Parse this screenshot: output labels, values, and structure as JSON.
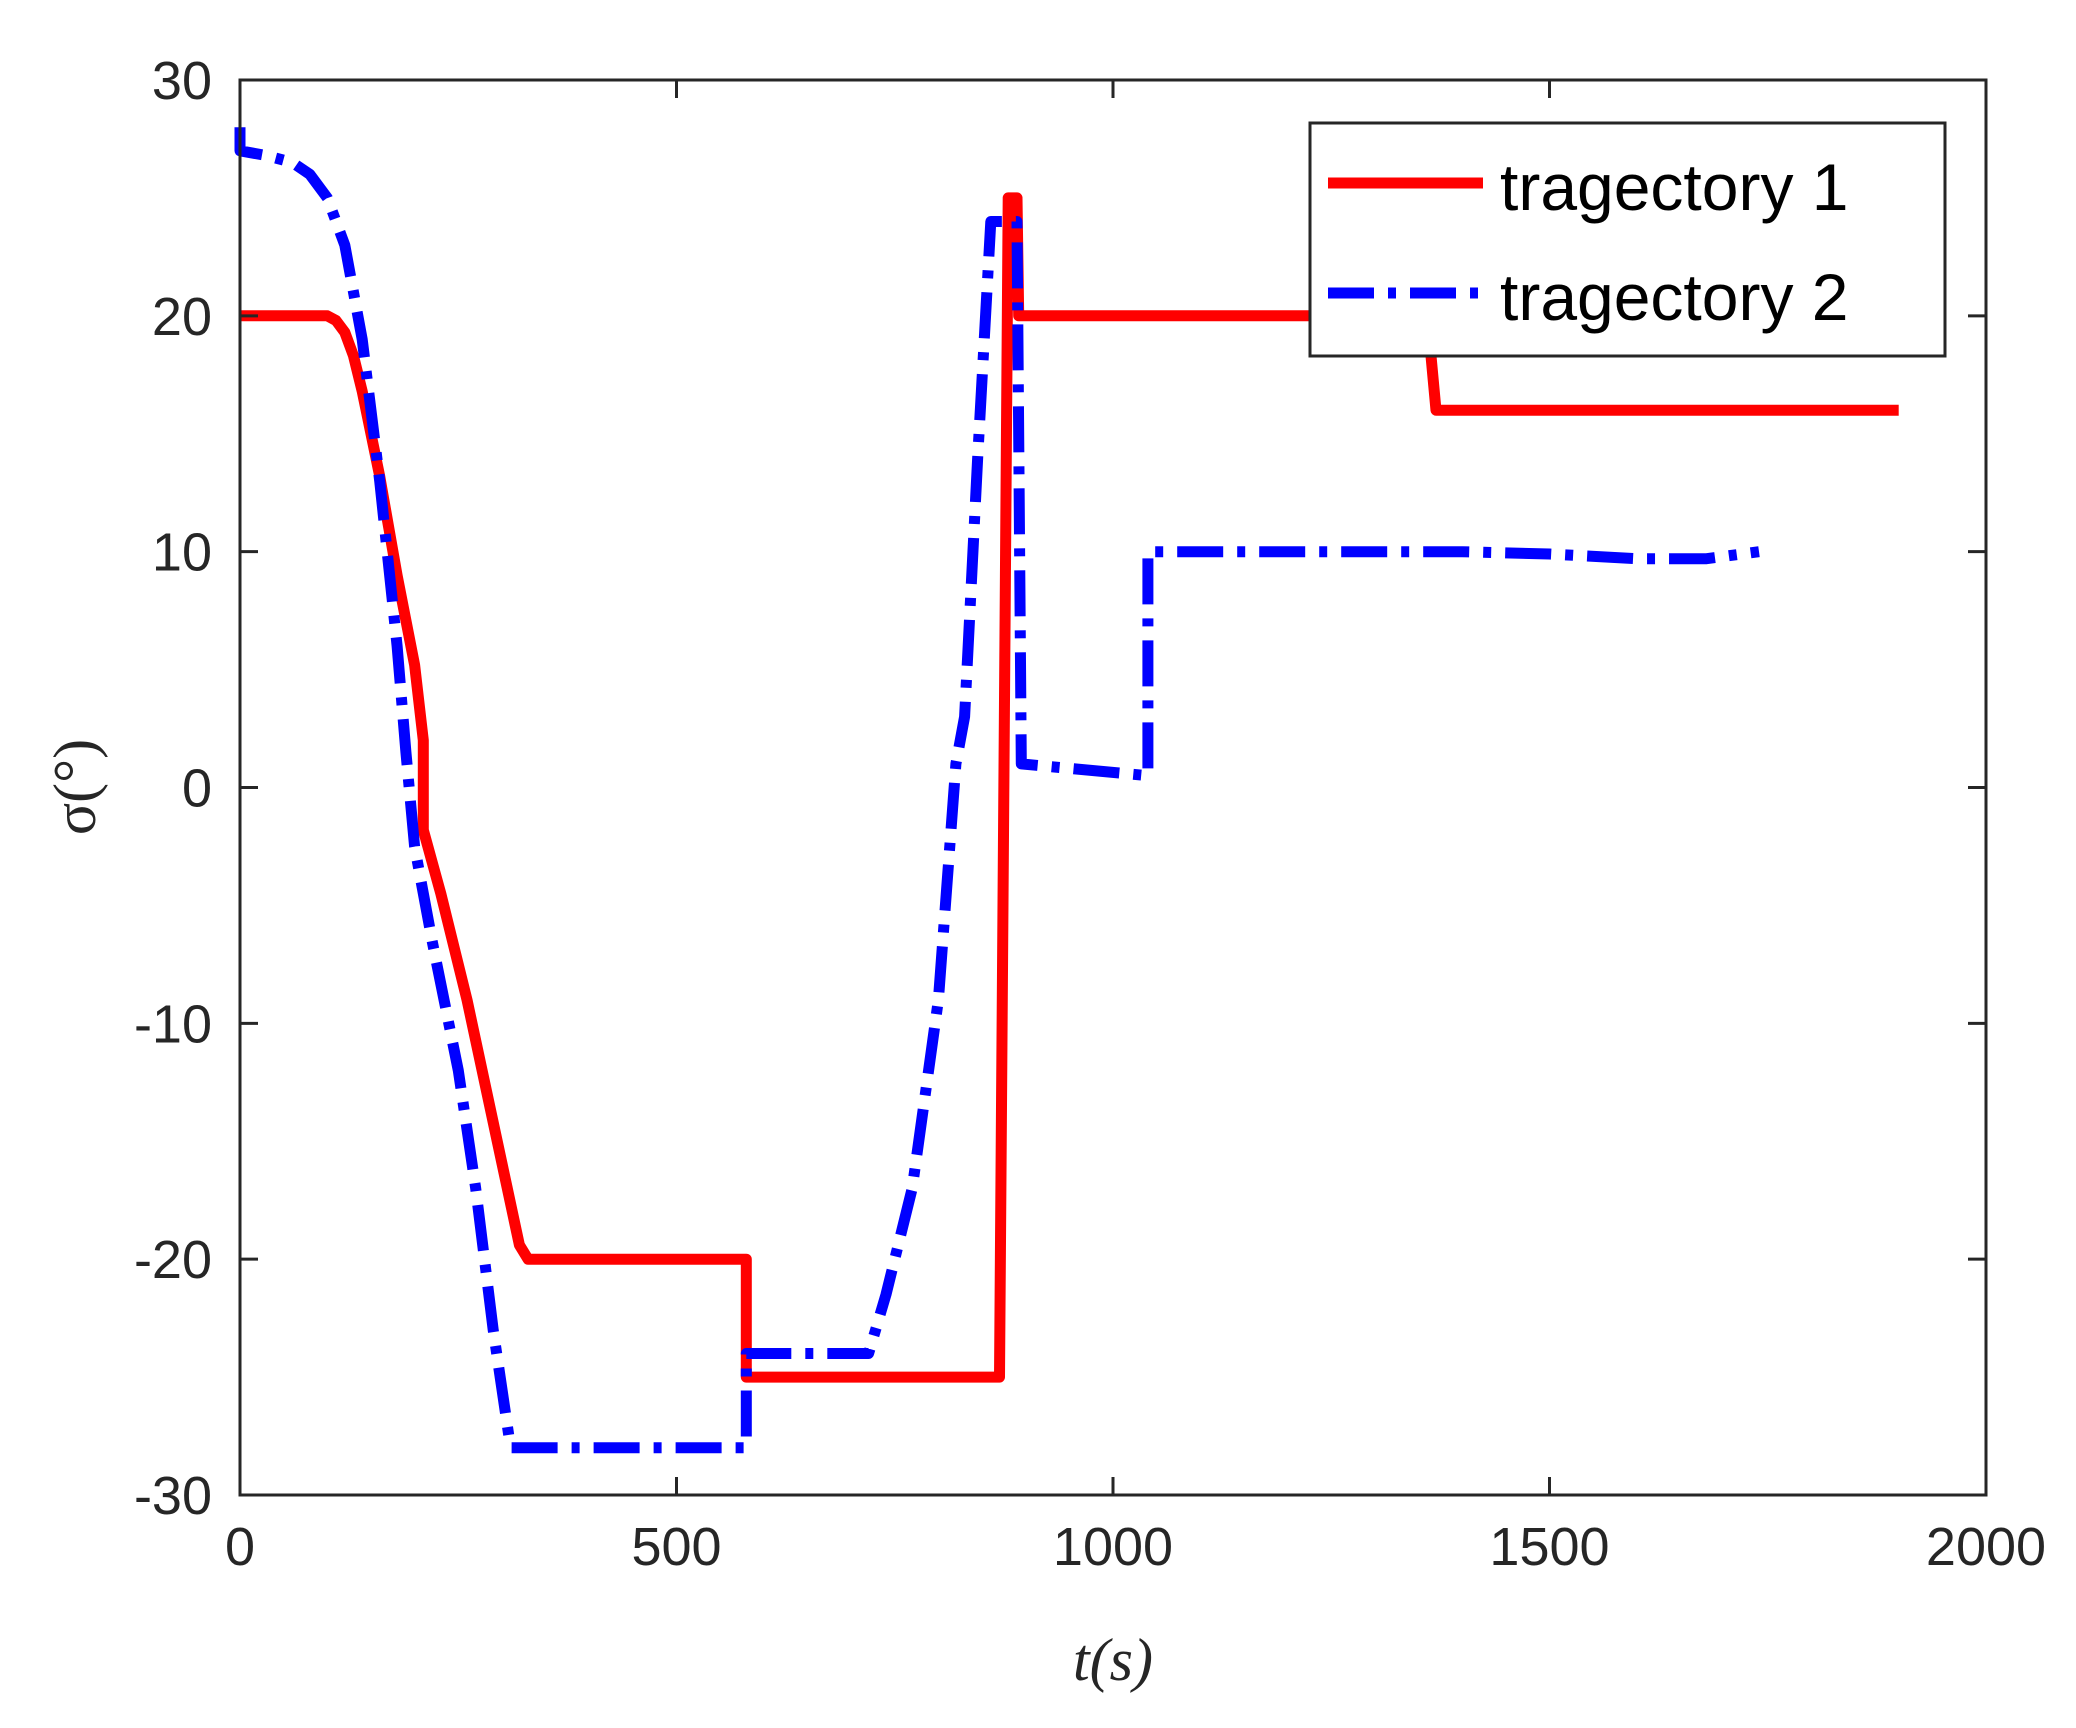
{
  "chart_data": {
    "type": "line",
    "xlabel": "t(s)",
    "ylabel": "σ(°)",
    "xlim": [
      0,
      2000
    ],
    "ylim": [
      -30,
      30
    ],
    "xticks": [
      "0",
      "500",
      "1000",
      "1500",
      "2000"
    ],
    "yticks": [
      "30",
      "20",
      "10",
      "0",
      "-10",
      "-20",
      "-30"
    ],
    "grid": false,
    "legend_position": "top-right",
    "series": [
      {
        "name": "tragectory 1",
        "color": "#ff0000",
        "style": "solid",
        "points": [
          [
            0,
            20
          ],
          [
            100,
            20
          ],
          [
            110,
            19.8
          ],
          [
            120,
            19.3
          ],
          [
            130,
            18.3
          ],
          [
            140,
            16.8
          ],
          [
            160,
            13.2
          ],
          [
            180,
            9.0
          ],
          [
            200,
            5.2
          ],
          [
            210,
            2.0
          ],
          [
            210,
            -1.8
          ],
          [
            230,
            -4.5
          ],
          [
            260,
            -9.0
          ],
          [
            290,
            -14.2
          ],
          [
            320,
            -19.4
          ],
          [
            330,
            -20.0
          ],
          [
            580,
            -20.0
          ],
          [
            580,
            -25.0
          ],
          [
            870,
            -25.0
          ],
          [
            880,
            25.0
          ],
          [
            890,
            25.0
          ],
          [
            892,
            20.0
          ],
          [
            1360,
            20.0
          ],
          [
            1370,
            16.0
          ],
          [
            1900,
            16.0
          ]
        ]
      },
      {
        "name": "tragectory 2",
        "color": "#0000ff",
        "style": "dashdot",
        "points": [
          [
            0,
            28
          ],
          [
            0,
            27
          ],
          [
            30,
            26.8
          ],
          [
            60,
            26.5
          ],
          [
            80,
            26.0
          ],
          [
            100,
            25.0
          ],
          [
            120,
            23.0
          ],
          [
            140,
            19.0
          ],
          [
            160,
            13.0
          ],
          [
            180,
            6.0
          ],
          [
            190,
            1.5
          ],
          [
            200,
            -2.5
          ],
          [
            220,
            -6.5
          ],
          [
            250,
            -12.0
          ],
          [
            270,
            -17.0
          ],
          [
            290,
            -23.0
          ],
          [
            310,
            -28.0
          ],
          [
            580,
            -28.0
          ],
          [
            580,
            -24.0
          ],
          [
            720,
            -24.0
          ],
          [
            740,
            -21.5
          ],
          [
            770,
            -17.0
          ],
          [
            800,
            -9.0
          ],
          [
            820,
            1.0
          ],
          [
            830,
            3.0
          ],
          [
            845,
            14.0
          ],
          [
            860,
            24.0
          ],
          [
            890,
            24.0
          ],
          [
            895,
            1.0
          ],
          [
            1040,
            0.5
          ],
          [
            1040,
            10.0
          ],
          [
            1200,
            10.0
          ],
          [
            1300,
            10.0
          ],
          [
            1400,
            10.0
          ],
          [
            1500,
            9.9
          ],
          [
            1600,
            9.7
          ],
          [
            1680,
            9.7
          ],
          [
            1740,
            10.0
          ]
        ]
      }
    ]
  }
}
